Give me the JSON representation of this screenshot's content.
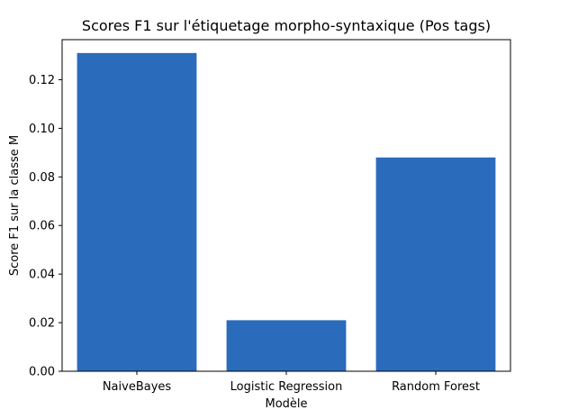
{
  "chart_data": {
    "type": "bar",
    "title": "Scores F1 sur l'étiquetage morpho-syntaxique (Pos tags)",
    "xlabel": "Modèle",
    "ylabel": "Score F1 sur la classe M",
    "categories": [
      "NaiveBayes",
      "Logistic Regression",
      "Random Forest"
    ],
    "values": [
      0.131,
      0.021,
      0.088
    ],
    "ylim": [
      0,
      0.1365
    ],
    "yticks": [
      0.0,
      0.02,
      0.04,
      0.06,
      0.08,
      0.1,
      0.12
    ],
    "ytick_labels": [
      "0.00",
      "0.02",
      "0.04",
      "0.06",
      "0.08",
      "0.10",
      "0.12"
    ],
    "bar_color": "#2a6bbc",
    "grid": false,
    "legend": null
  }
}
